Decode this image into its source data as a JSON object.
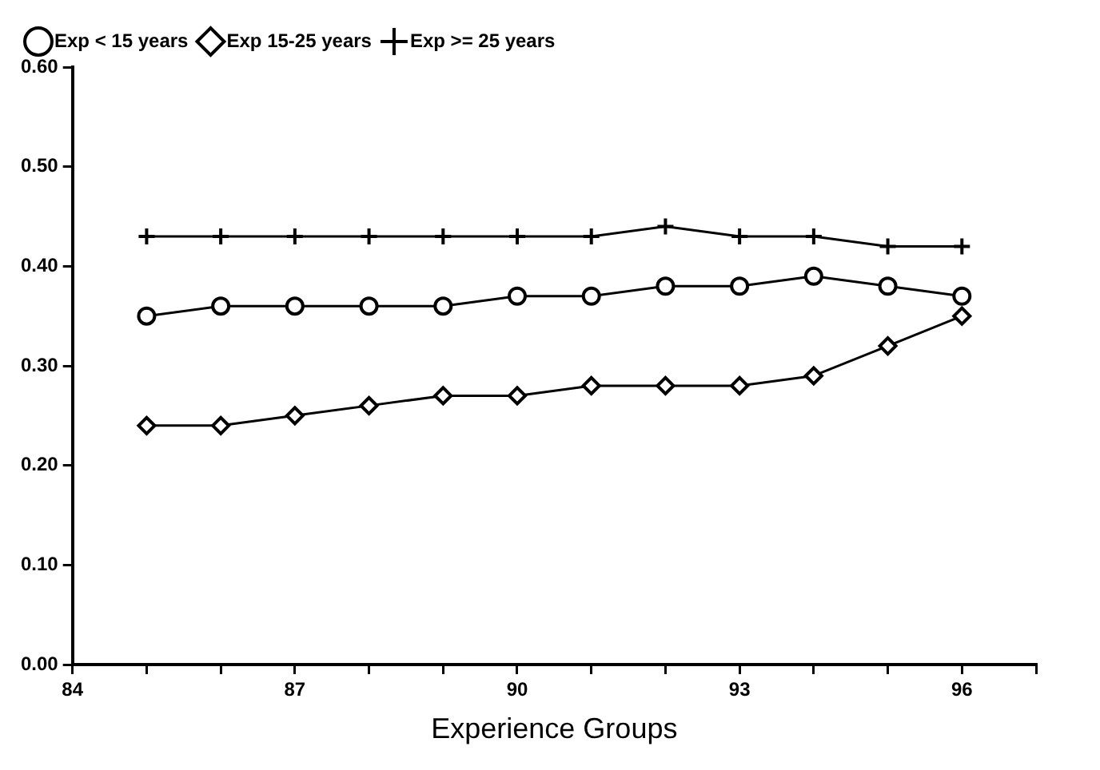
{
  "chart_data": {
    "type": "line",
    "xlabel": "Experience Groups",
    "x": [
      85,
      86,
      87,
      88,
      89,
      90,
      91,
      92,
      93,
      94,
      95,
      96
    ],
    "series": [
      {
        "name": "Exp < 15 years",
        "color": "#000000",
        "marker": "circle",
        "values": [
          0.35,
          0.36,
          0.36,
          0.36,
          0.36,
          0.37,
          0.37,
          0.38,
          0.38,
          0.39,
          0.38,
          0.37
        ]
      },
      {
        "name": "Exp 15-25 years",
        "color": "#000000",
        "marker": "diamond",
        "values": [
          0.24,
          0.24,
          0.25,
          0.26,
          0.27,
          0.27,
          0.28,
          0.28,
          0.28,
          0.29,
          0.32,
          0.35
        ]
      },
      {
        "name": "Exp >= 25 years",
        "color": "#000000",
        "marker": "cross",
        "values": [
          0.43,
          0.43,
          0.43,
          0.43,
          0.43,
          0.43,
          0.43,
          0.44,
          0.43,
          0.43,
          0.42,
          0.42
        ]
      }
    ],
    "xlim": [
      84,
      97
    ],
    "xticks": [
      84,
      {
        "value": 85,
        "label": null
      },
      {
        "value": 86,
        "label": null
      },
      87,
      {
        "value": 88,
        "label": null
      },
      {
        "value": 89,
        "label": null
      },
      90,
      {
        "value": 91,
        "label": null
      },
      {
        "value": 92,
        "label": null
      },
      93,
      {
        "value": 94,
        "label": null
      },
      {
        "value": 95,
        "label": null
      },
      96,
      {
        "value": 97,
        "label": null
      }
    ],
    "ylim": [
      0,
      0.6
    ],
    "yticks": [
      {
        "value": 0,
        "label": "0.00"
      },
      {
        "value": 0.1,
        "label": "0.10"
      },
      {
        "value": 0.2,
        "label": "0.20"
      },
      {
        "value": 0.3,
        "label": "0.30"
      },
      {
        "value": 0.4,
        "label": "0.40"
      },
      {
        "value": 0.5,
        "label": "0.50"
      },
      {
        "value": 0.6,
        "label": "0.60"
      }
    ],
    "grid": false,
    "legend": "top",
    "line_style": "solid"
  }
}
